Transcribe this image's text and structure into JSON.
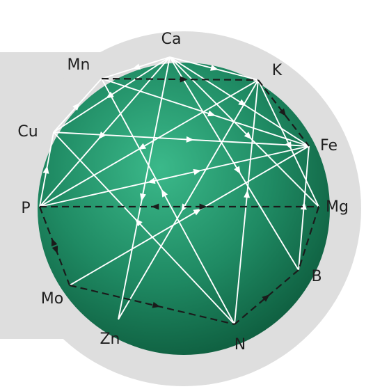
{
  "nodes": [
    {
      "id": "Ca",
      "label": "Ca"
    },
    {
      "id": "K",
      "label": "K"
    },
    {
      "id": "Fe",
      "label": "Fe"
    },
    {
      "id": "Mg",
      "label": "Mg"
    },
    {
      "id": "B",
      "label": "B"
    },
    {
      "id": "N",
      "label": "N"
    },
    {
      "id": "Zn",
      "label": "Zn"
    },
    {
      "id": "Mo",
      "label": "Mo"
    },
    {
      "id": "P",
      "label": "P"
    },
    {
      "id": "Cu",
      "label": "Cu"
    },
    {
      "id": "Mn",
      "label": "Mn"
    }
  ],
  "edges": [
    {
      "from": "Mn",
      "to": "K",
      "style": "dashed",
      "direction": "forward"
    },
    {
      "from": "K",
      "to": "Fe",
      "style": "dashed",
      "direction": "forward"
    },
    {
      "from": "P",
      "to": "Mg",
      "style": "dashed",
      "direction": "both"
    },
    {
      "from": "Mg",
      "to": "B",
      "style": "dashed",
      "direction": "none"
    },
    {
      "from": "B",
      "to": "N",
      "style": "dashed",
      "direction": "backward"
    },
    {
      "from": "Mo",
      "to": "N",
      "style": "dashed",
      "direction": "forward"
    },
    {
      "from": "P",
      "to": "Mo",
      "style": "dashed",
      "direction": "both"
    },
    {
      "from": "Ca",
      "to": "Mn",
      "style": "solid",
      "direction": "forward"
    },
    {
      "from": "Ca",
      "to": "Cu",
      "style": "solid",
      "direction": "forward"
    },
    {
      "from": "Ca",
      "to": "P",
      "style": "solid",
      "direction": "forward"
    },
    {
      "from": "Ca",
      "to": "K",
      "style": "solid",
      "direction": "forward"
    },
    {
      "from": "Ca",
      "to": "Fe",
      "style": "solid",
      "direction": "forward"
    },
    {
      "from": "Ca",
      "to": "Mg",
      "style": "solid",
      "direction": "forward"
    },
    {
      "from": "Ca",
      "to": "B",
      "style": "solid",
      "direction": "forward"
    },
    {
      "from": "Ca",
      "to": "Zn",
      "style": "solid",
      "direction": "forward"
    },
    {
      "from": "Mn",
      "to": "Fe",
      "style": "solid",
      "direction": "forward"
    },
    {
      "from": "Mn",
      "to": "N",
      "style": "solid",
      "direction": "backward"
    },
    {
      "from": "Cu",
      "to": "Mn",
      "style": "solid",
      "direction": "forward"
    },
    {
      "from": "Cu",
      "to": "Fe",
      "style": "solid",
      "direction": "forward"
    },
    {
      "from": "Cu",
      "to": "N",
      "style": "solid",
      "direction": "backward"
    },
    {
      "from": "Cu",
      "to": "P",
      "style": "solid",
      "direction": "backward"
    },
    {
      "from": "K",
      "to": "P",
      "style": "solid",
      "direction": "forward"
    },
    {
      "from": "K",
      "to": "Mg",
      "style": "solid",
      "direction": "forward"
    },
    {
      "from": "K",
      "to": "N",
      "style": "solid",
      "direction": "backward"
    },
    {
      "from": "K",
      "to": "Zn",
      "style": "solid",
      "direction": "forward"
    },
    {
      "from": "Fe",
      "to": "P",
      "style": "solid",
      "direction": "both"
    },
    {
      "from": "Fe",
      "to": "Mo",
      "style": "solid",
      "direction": "backward"
    },
    {
      "from": "Fe",
      "to": "B",
      "style": "solid",
      "direction": "backward"
    }
  ],
  "colors": {
    "disc": "#1f8a63",
    "disc_dark": "#0f5e3f",
    "disc_light": "#34b080",
    "ring": "#dedede",
    "bar": "#dedede",
    "solid_edge": "#ffffff",
    "dashed_edge": "#1b1b1b"
  }
}
